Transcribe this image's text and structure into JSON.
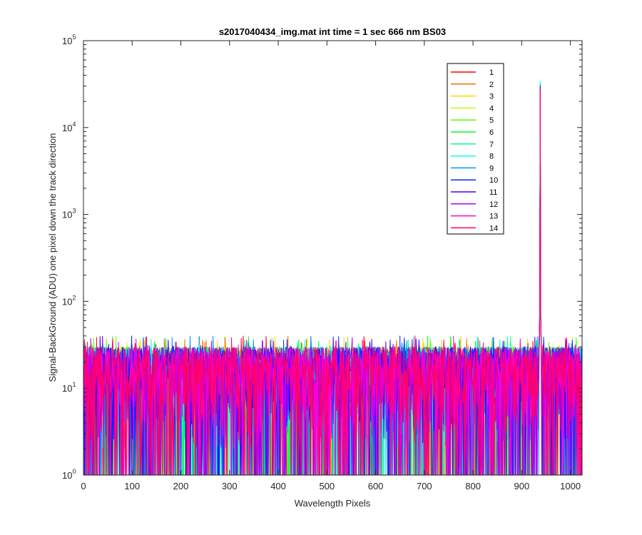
{
  "chart_data": {
    "type": "line",
    "title": "s2017040434_img.mat int time = 1 sec  666 nm BS03",
    "xlabel": "Wavelength Pixels",
    "ylabel": "Signal-BackGround (ADU) one pixel down the track direction",
    "xlim": [
      0,
      1024
    ],
    "ylim": [
      1,
      100000
    ],
    "yscale": "log",
    "grid": false,
    "legend_position": "top-right",
    "x_ticks": [
      0,
      100,
      200,
      300,
      400,
      500,
      600,
      700,
      800,
      900,
      1000
    ],
    "x_tick_labels": [
      "0",
      "100",
      "200",
      "300",
      "400",
      "500",
      "600",
      "700",
      "800",
      "900",
      "1000"
    ],
    "y_ticks": [
      {
        "value": 1,
        "base": "10",
        "exp": "0"
      },
      {
        "value": 10,
        "base": "10",
        "exp": "1"
      },
      {
        "value": 100,
        "base": "10",
        "exp": "2"
      },
      {
        "value": 1000,
        "base": "10",
        "exp": "3"
      },
      {
        "value": 10000,
        "base": "10",
        "exp": "4"
      },
      {
        "value": 100000,
        "base": "10",
        "exp": "5"
      }
    ],
    "noise_level": {
      "typical_min": 1,
      "typical_max": 30,
      "occasional_max": 40
    },
    "peak": {
      "x": 938,
      "y_max": 34000,
      "y_min": 26000
    },
    "series": [
      {
        "name": "1",
        "color": "#ff0000",
        "peak_y": 26000
      },
      {
        "name": "2",
        "color": "#ff6a00",
        "peak_y": 27000
      },
      {
        "name": "3",
        "color": "#ffd400",
        "peak_y": 28000
      },
      {
        "name": "4",
        "color": "#c0ff00",
        "peak_y": 29000
      },
      {
        "name": "5",
        "color": "#55ff00",
        "peak_y": 30000
      },
      {
        "name": "6",
        "color": "#00ff2a",
        "peak_y": 31000
      },
      {
        "name": "7",
        "color": "#00ff95",
        "peak_y": 32000
      },
      {
        "name": "8",
        "color": "#00ffff",
        "peak_y": 34000
      },
      {
        "name": "9",
        "color": "#0095ff",
        "peak_y": 31000
      },
      {
        "name": "10",
        "color": "#002aff",
        "peak_y": 30000
      },
      {
        "name": "11",
        "color": "#4000ff",
        "peak_y": 29000
      },
      {
        "name": "12",
        "color": "#aa00ff",
        "peak_y": 28000
      },
      {
        "name": "13",
        "color": "#ff00d4",
        "peak_y": 27000
      },
      {
        "name": "14",
        "color": "#ff006a",
        "peak_y": 26000
      }
    ]
  }
}
